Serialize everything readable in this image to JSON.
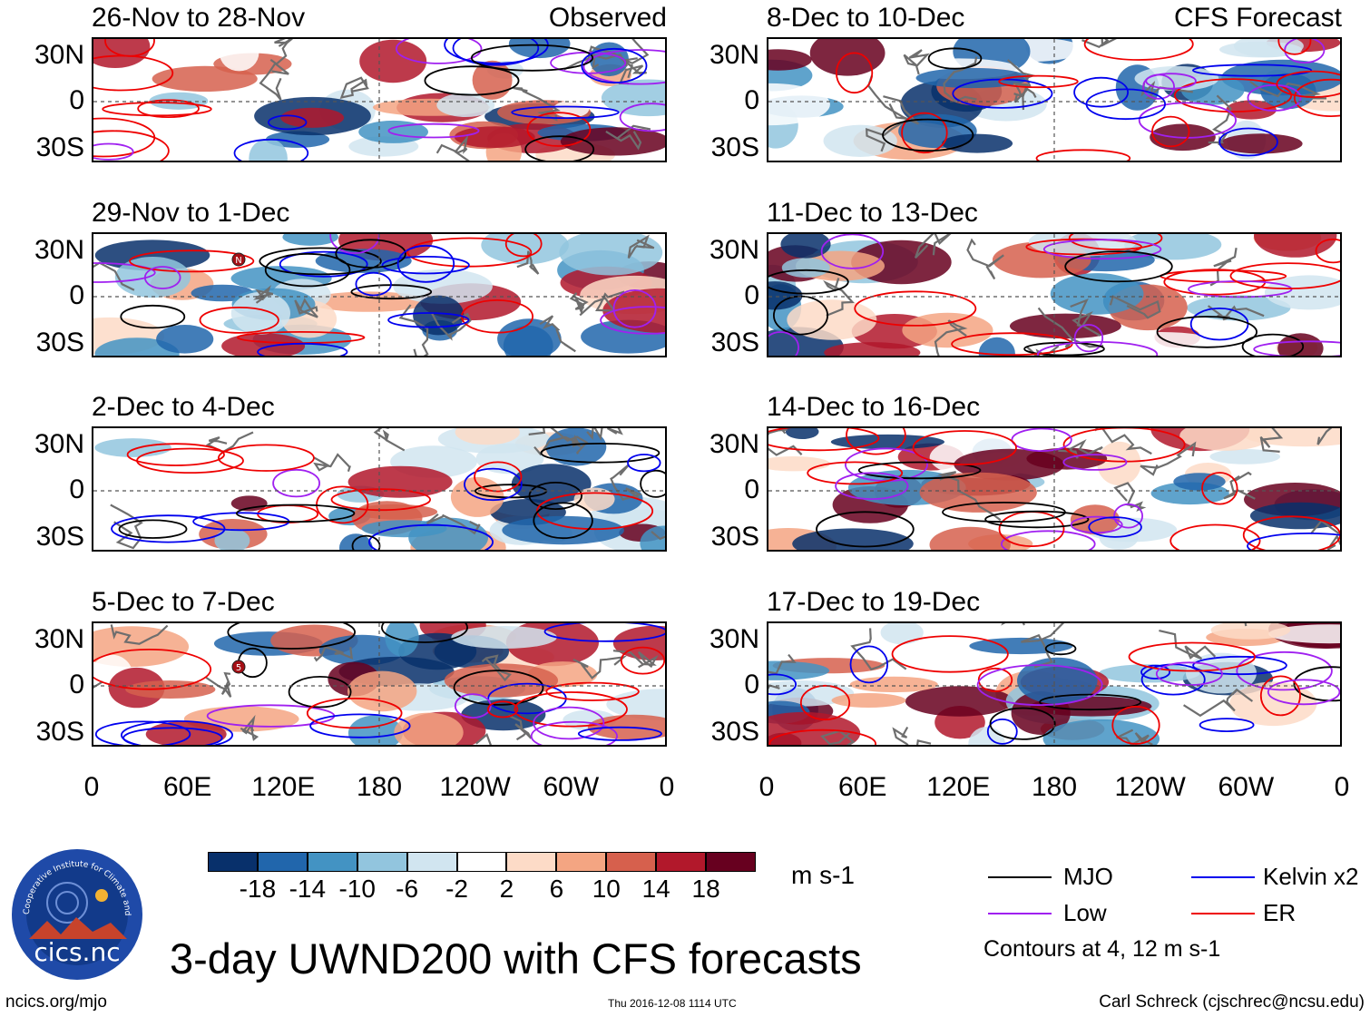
{
  "panels": [
    {
      "title": "26-Nov to 28-Nov",
      "tag": "Observed",
      "seed": 11
    },
    {
      "title": "29-Nov to 1-Dec",
      "tag": "",
      "seed": 23,
      "marker": "N"
    },
    {
      "title": "2-Dec to 4-Dec",
      "tag": "",
      "seed": 37
    },
    {
      "title": "5-Dec to 7-Dec",
      "tag": "",
      "seed": 41,
      "marker": "5"
    },
    {
      "title": "8-Dec to 10-Dec",
      "tag": "CFS Forecast",
      "seed": 53
    },
    {
      "title": "11-Dec to 13-Dec",
      "tag": "",
      "seed": 67
    },
    {
      "title": "14-Dec to 16-Dec",
      "tag": "",
      "seed": 71
    },
    {
      "title": "17-Dec to 19-Dec",
      "tag": "",
      "seed": 89
    }
  ],
  "lat_labels": [
    "30N",
    "0",
    "30S"
  ],
  "lon_labels": [
    "0",
    "60E",
    "120E",
    "180",
    "120W",
    "60W",
    "0"
  ],
  "colorbar": {
    "colors": [
      "#08306b",
      "#2166ac",
      "#4393c3",
      "#92c5de",
      "#d1e5f0",
      "#ffffff",
      "#fddbc7",
      "#f4a582",
      "#d6604d",
      "#b2182b",
      "#67001f"
    ],
    "ticks": [
      "-18",
      "-14",
      "-10",
      "-6",
      "-2",
      "2",
      "6",
      "10",
      "14",
      "18"
    ],
    "units": "m s-1"
  },
  "legend": {
    "items": [
      {
        "label": "MJO",
        "color": "#000000"
      },
      {
        "label": "Kelvin x2",
        "color": "#0000ee"
      },
      {
        "label": "Low",
        "color": "#a020f0"
      },
      {
        "label": "ER",
        "color": "#ee0000"
      }
    ],
    "note": "Contours at 4, 12 m s-1"
  },
  "logo": {
    "text": "cics.nc",
    "ring_text": "Cooperative Institute for Climate and Satellites"
  },
  "main_title": "3-day UWND200 with CFS forecasts",
  "footer": {
    "left": "ncics.org/mjo",
    "center": "Thu 2016-12-08 1114 UTC",
    "right": "Carl Schreck (cjschrec@ncsu.edu)"
  }
}
